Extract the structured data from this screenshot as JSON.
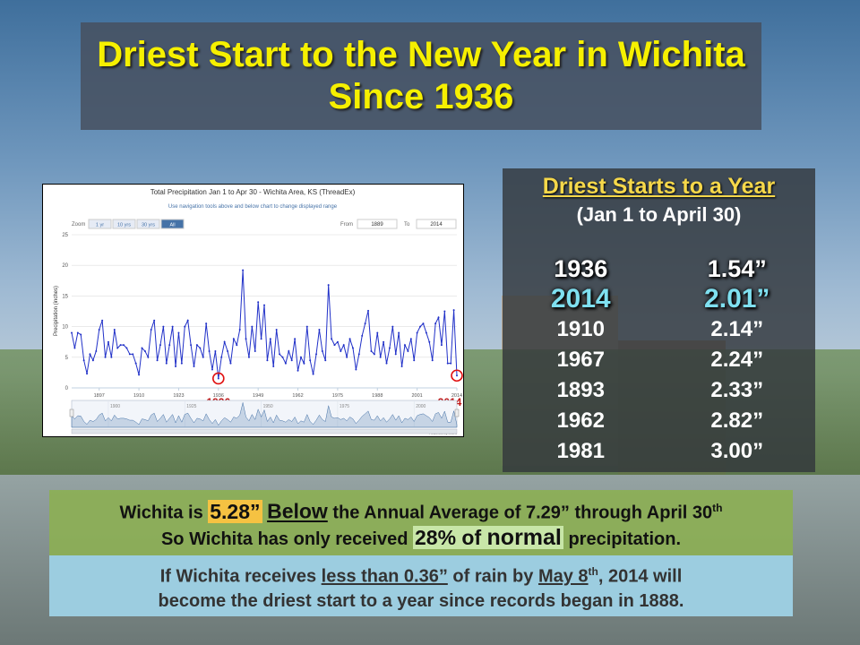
{
  "header": {
    "title": "Driest Start to the New Year in Wichita Since 1936"
  },
  "table": {
    "title": "Driest Starts to a Year",
    "subtitle": "(Jan 1 to April 30)",
    "rows": [
      [
        "1936",
        "1.54”"
      ],
      [
        "2014",
        "2.01”"
      ],
      [
        "1910",
        "2.14”"
      ],
      [
        "1967",
        "2.24”"
      ],
      [
        "1893",
        "2.33”"
      ],
      [
        "1962",
        "2.82”"
      ],
      [
        "1981",
        "3.00”"
      ]
    ]
  },
  "notes": {
    "line1": [
      "Wichita is ",
      "5.28”",
      " ",
      "Below",
      " the Annual Average of  7.29” through April 30",
      "th"
    ],
    "line2": [
      "So Wichita has only received ",
      "28% of ",
      "normal",
      " precipitation."
    ],
    "line3": [
      "If Wichita receives ",
      "less than 0.36”",
      " of rain by ",
      "May 8",
      "th",
      ", 2014 will"
    ],
    "line4": [
      "become the driest start to a year since records began in 1888."
    ]
  },
  "chart_data": {
    "type": "line",
    "title": "Total Precipitation Jan 1 to Apr 30 - Wichita Area, KS (ThreadEx)",
    "subtitle": "Use navigation tools above and below chart to change displayed range",
    "zoom_label": "Zoom",
    "zoom_buttons": [
      "1 yr",
      "10 yrs",
      "30 yrs",
      "All"
    ],
    "from_label": "From",
    "from_value": "1889",
    "to_label": "To",
    "to_value": "2014",
    "ylabel": "Precipitation (inches)",
    "credit": "Powered by ACIS",
    "annotations": [
      {
        "label": "1936",
        "x": 1936
      },
      {
        "label": "2014",
        "x": 2014
      }
    ],
    "xlim": [
      1888,
      2014
    ],
    "xticks": [
      1897,
      1910,
      1923,
      1936,
      1949,
      1962,
      1975,
      1988,
      2001,
      2014
    ],
    "navigator_ticks": [
      1900,
      1925,
      1950,
      1975,
      2000
    ],
    "ylim": [
      0,
      25
    ],
    "yticks": [
      0,
      5,
      10,
      15,
      20,
      25
    ],
    "grid": true,
    "x": [
      1888,
      1889,
      1890,
      1891,
      1892,
      1893,
      1894,
      1895,
      1896,
      1897,
      1898,
      1899,
      1900,
      1901,
      1902,
      1903,
      1904,
      1905,
      1906,
      1907,
      1908,
      1909,
      1910,
      1911,
      1912,
      1913,
      1914,
      1915,
      1916,
      1917,
      1918,
      1919,
      1920,
      1921,
      1922,
      1923,
      1924,
      1925,
      1926,
      1927,
      1928,
      1929,
      1930,
      1931,
      1932,
      1933,
      1934,
      1935,
      1936,
      1937,
      1938,
      1939,
      1940,
      1941,
      1942,
      1943,
      1944,
      1945,
      1946,
      1947,
      1948,
      1949,
      1950,
      1951,
      1952,
      1953,
      1954,
      1955,
      1956,
      1957,
      1958,
      1959,
      1960,
      1961,
      1962,
      1963,
      1964,
      1965,
      1966,
      1967,
      1968,
      1969,
      1970,
      1971,
      1972,
      1973,
      1974,
      1975,
      1976,
      1977,
      1978,
      1979,
      1980,
      1981,
      1982,
      1983,
      1984,
      1985,
      1986,
      1987,
      1988,
      1989,
      1990,
      1991,
      1992,
      1993,
      1994,
      1995,
      1996,
      1997,
      1998,
      1999,
      2000,
      2001,
      2002,
      2003,
      2004,
      2005,
      2006,
      2007,
      2008,
      2009,
      2010,
      2011,
      2012,
      2013,
      2014
    ],
    "series": [
      {
        "name": "Precipitation",
        "color": "#2030c8",
        "values": [
          9,
          6.5,
          9,
          8.7,
          4.5,
          2.33,
          5.5,
          4.5,
          6,
          9.5,
          11,
          5,
          7.5,
          5,
          9.5,
          6.5,
          7,
          7,
          6.5,
          5.5,
          5.5,
          4,
          2.14,
          6.5,
          6,
          5,
          9.5,
          11,
          4.5,
          7,
          10,
          4,
          7,
          10,
          3.5,
          9,
          4,
          10,
          11,
          7,
          3.5,
          7,
          6.5,
          5,
          10.5,
          6,
          3,
          6,
          1.54,
          5,
          7.5,
          6,
          4,
          8,
          7,
          9.5,
          19.2,
          8,
          5,
          10,
          6,
          14,
          8,
          13.5,
          4.5,
          8,
          3.5,
          9.5,
          5.5,
          5,
          4,
          6,
          4.5,
          8,
          2.82,
          5,
          4,
          10,
          4.5,
          2.24,
          5.5,
          9.5,
          6,
          4.5,
          16.8,
          8,
          7,
          7.5,
          6,
          7,
          5,
          8,
          6.5,
          3.0,
          5.5,
          8.5,
          10.5,
          12.6,
          6,
          5.5,
          9,
          5,
          7.5,
          4,
          6.5,
          10,
          5.5,
          9,
          3.5,
          7,
          6,
          8,
          4.5,
          9,
          10,
          10.5,
          9,
          7.5,
          4.5,
          10.5,
          11.5,
          7,
          12.5,
          4,
          4,
          12.7,
          2.01
        ]
      }
    ]
  }
}
